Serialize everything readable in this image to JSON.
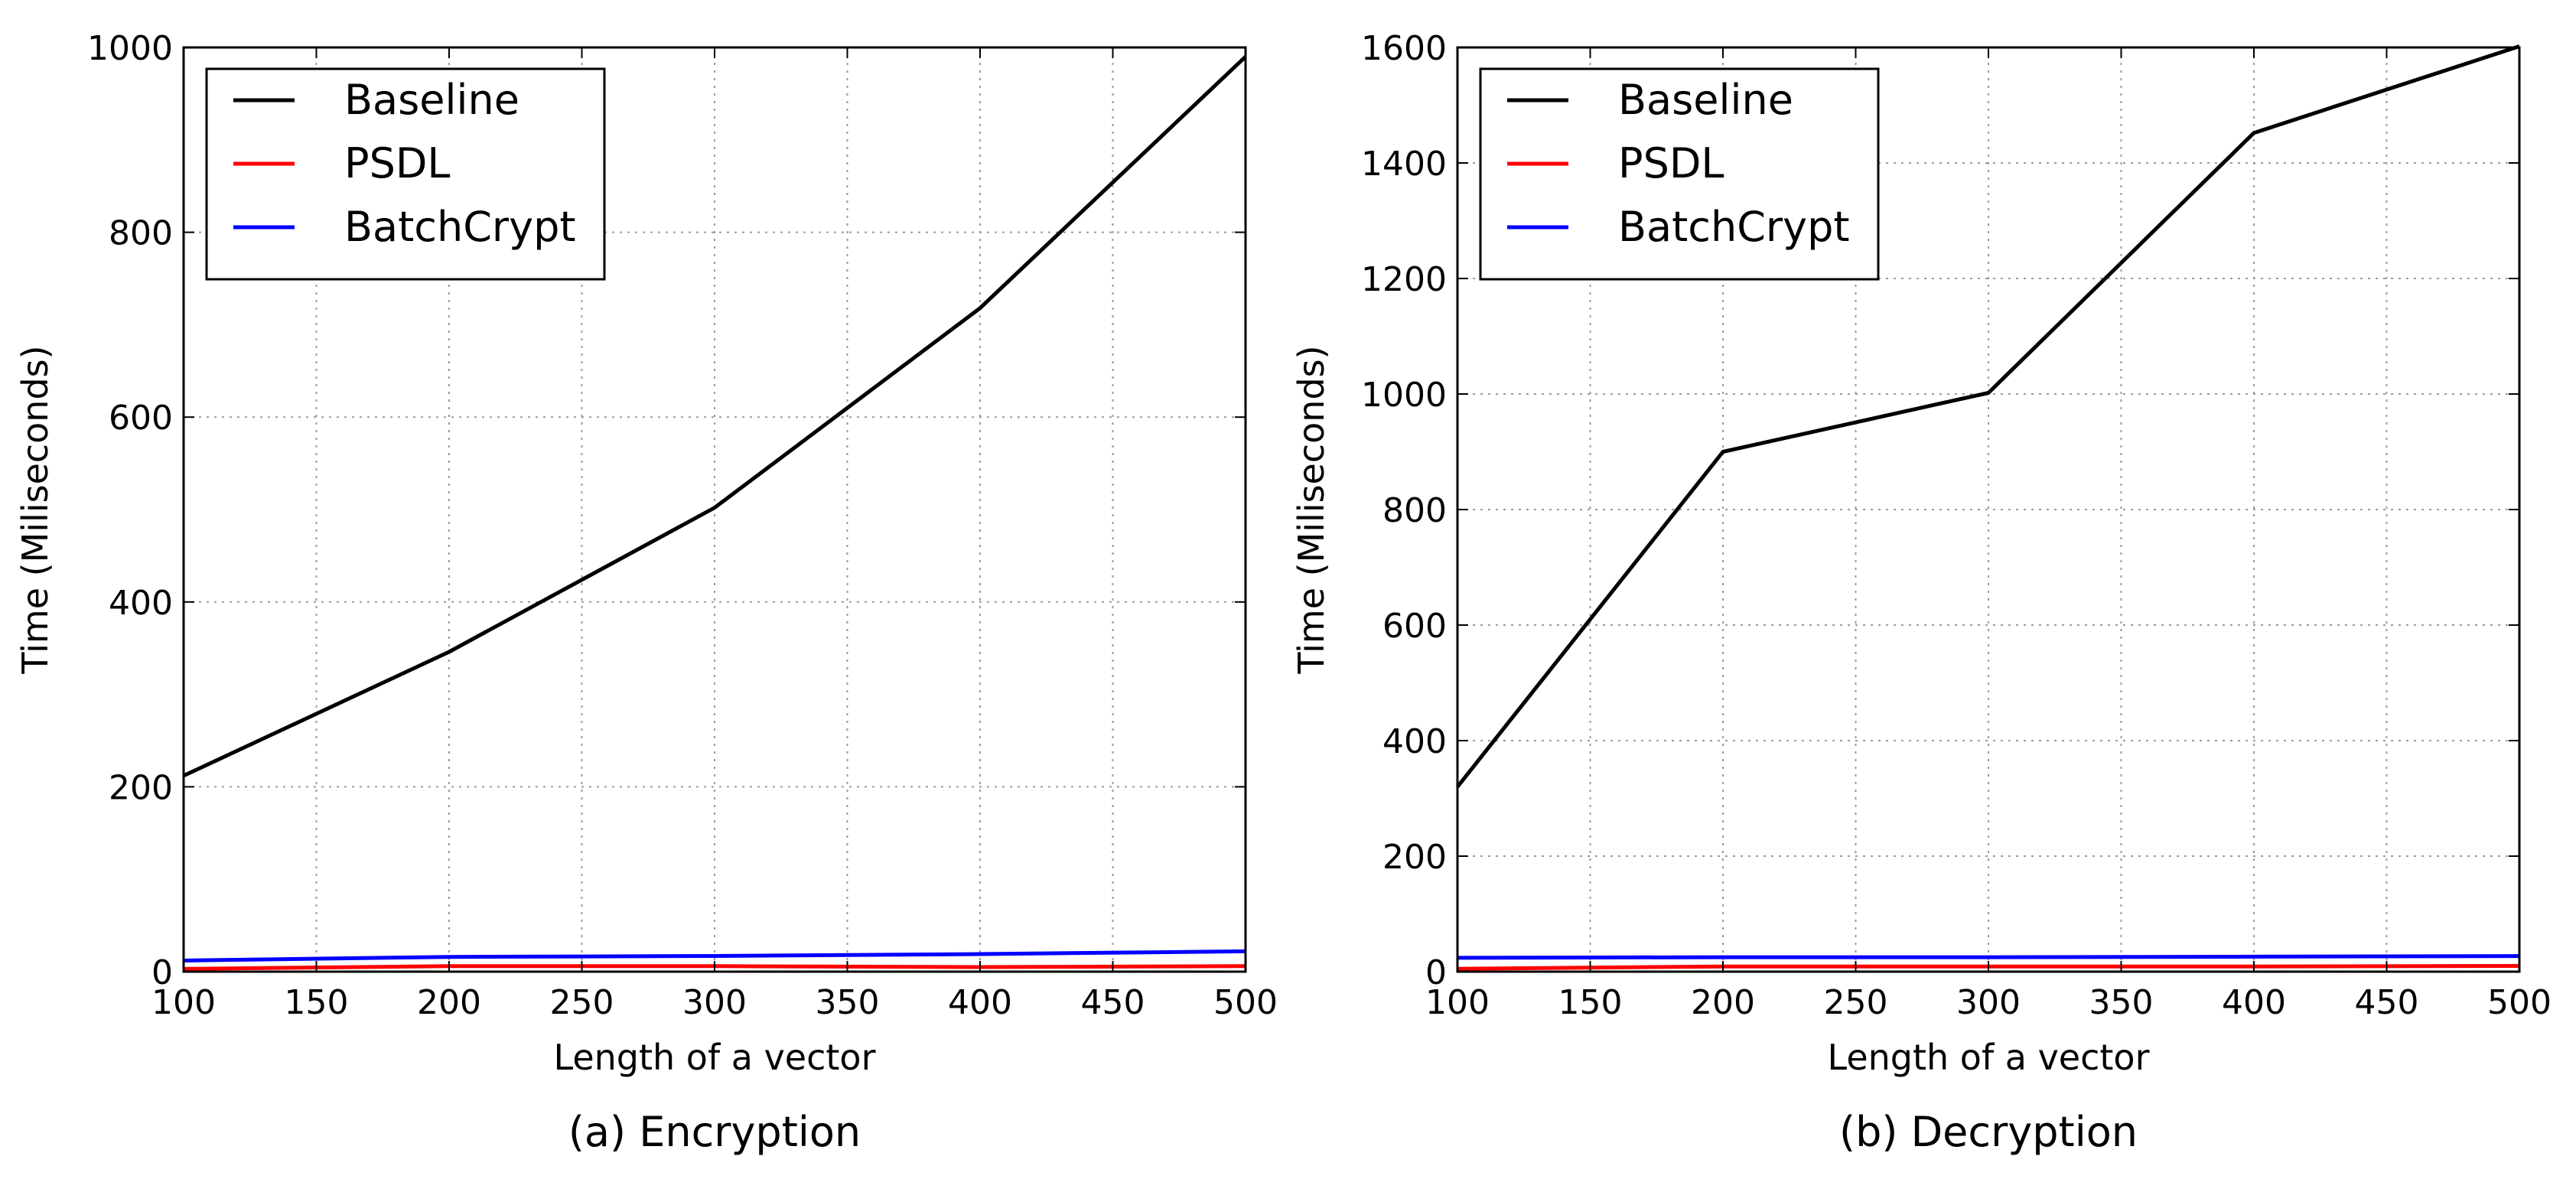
{
  "chart_data": [
    {
      "type": "line",
      "caption": "(a) Encryption",
      "xlabel": "Length of a vector",
      "ylabel": "Time (Miliseconds)",
      "xlim": [
        100,
        500
      ],
      "ylim": [
        0,
        1000
      ],
      "xticks": [
        100,
        150,
        200,
        250,
        300,
        350,
        400,
        450,
        500
      ],
      "yticks": [
        0,
        200,
        400,
        600,
        800,
        1000
      ],
      "grid": true,
      "legend_position": "top-left",
      "x": [
        100,
        200,
        300,
        400,
        500
      ],
      "series": [
        {
          "name": "Baseline",
          "color": "#000000",
          "values": [
            212,
            346,
            502,
            718,
            990
          ]
        },
        {
          "name": "PSDL",
          "color": "#ff0000",
          "values": [
            3,
            6,
            6,
            5,
            6
          ]
        },
        {
          "name": "BatchCrypt",
          "color": "#0000ff",
          "values": [
            12,
            16,
            17,
            19,
            22
          ]
        }
      ]
    },
    {
      "type": "line",
      "caption": "(b) Decryption",
      "xlabel": "Length of a vector",
      "ylabel": "Time (Miliseconds)",
      "xlim": [
        100,
        500
      ],
      "ylim": [
        0,
        1600
      ],
      "xticks": [
        100,
        150,
        200,
        250,
        300,
        350,
        400,
        450,
        500
      ],
      "yticks": [
        0,
        200,
        400,
        600,
        800,
        1000,
        1200,
        1400,
        1600
      ],
      "grid": true,
      "legend_position": "top-left",
      "x": [
        100,
        200,
        300,
        400,
        500
      ],
      "series": [
        {
          "name": "Baseline",
          "color": "#000000",
          "values": [
            320,
            900,
            1002,
            1452,
            1602
          ]
        },
        {
          "name": "PSDL",
          "color": "#ff0000",
          "values": [
            5,
            9,
            9,
            9,
            10
          ]
        },
        {
          "name": "BatchCrypt",
          "color": "#0000ff",
          "values": [
            24,
            25,
            25,
            26,
            27
          ]
        }
      ]
    }
  ]
}
